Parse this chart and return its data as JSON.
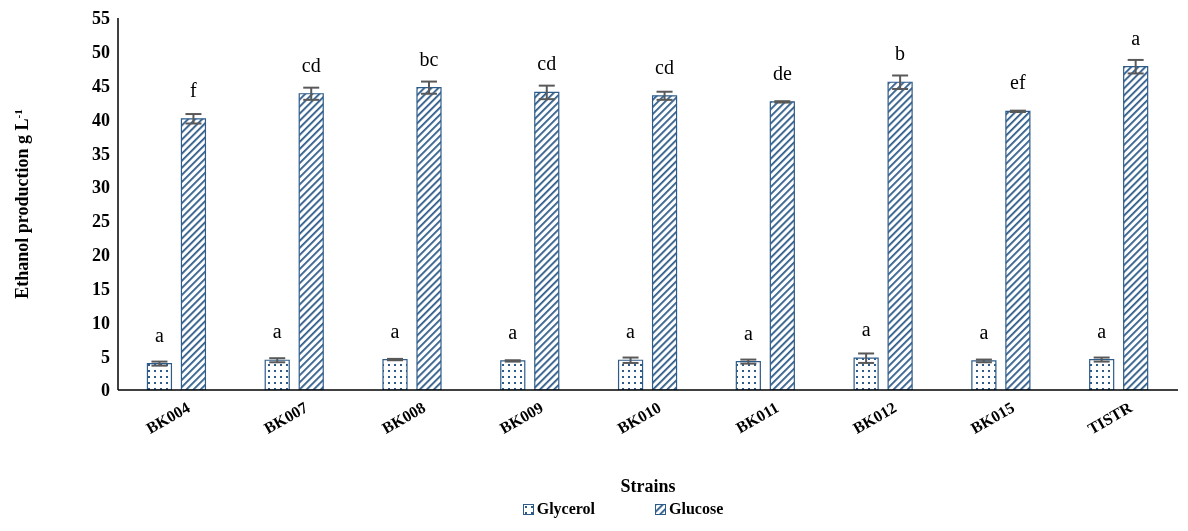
{
  "chart_data": {
    "type": "bar",
    "xlabel": "Strains",
    "ylabel": "Ethanol production g L$^{-1}$",
    "categories": [
      "BK004",
      "BK007",
      "BK008",
      "BK009",
      "BK010",
      "BK011",
      "BK012",
      "BK015",
      "TISTR"
    ],
    "series": [
      {
        "name": "Glycerol",
        "color": "#2e5c8a",
        "values": [
          3.9,
          4.4,
          4.5,
          4.3,
          4.4,
          4.2,
          4.7,
          4.3,
          4.5
        ],
        "errors": [
          0.3,
          0.3,
          0.1,
          0.1,
          0.4,
          0.3,
          0.7,
          0.2,
          0.3
        ],
        "value_labels": [
          "a",
          "a",
          "a",
          "a",
          "a",
          "a",
          "a",
          "a",
          "a"
        ]
      },
      {
        "name": "Glucose",
        "color": "#2e5c8a",
        "values": [
          40.1,
          43.8,
          44.7,
          44.0,
          43.5,
          42.6,
          45.5,
          41.2,
          47.8
        ],
        "errors": [
          0.7,
          0.9,
          0.9,
          1.0,
          0.6,
          0.1,
          1.0,
          0.1,
          1.0
        ],
        "value_labels": [
          "f",
          "cd",
          "bc",
          "cd",
          "cd",
          "de",
          "b",
          "ef",
          "a"
        ]
      }
    ],
    "ylim": [
      0,
      55
    ],
    "yticks": [
      0,
      5,
      10,
      15,
      20,
      25,
      30,
      35,
      40,
      45,
      50,
      55
    ],
    "grid": false,
    "legend": "bottom"
  }
}
